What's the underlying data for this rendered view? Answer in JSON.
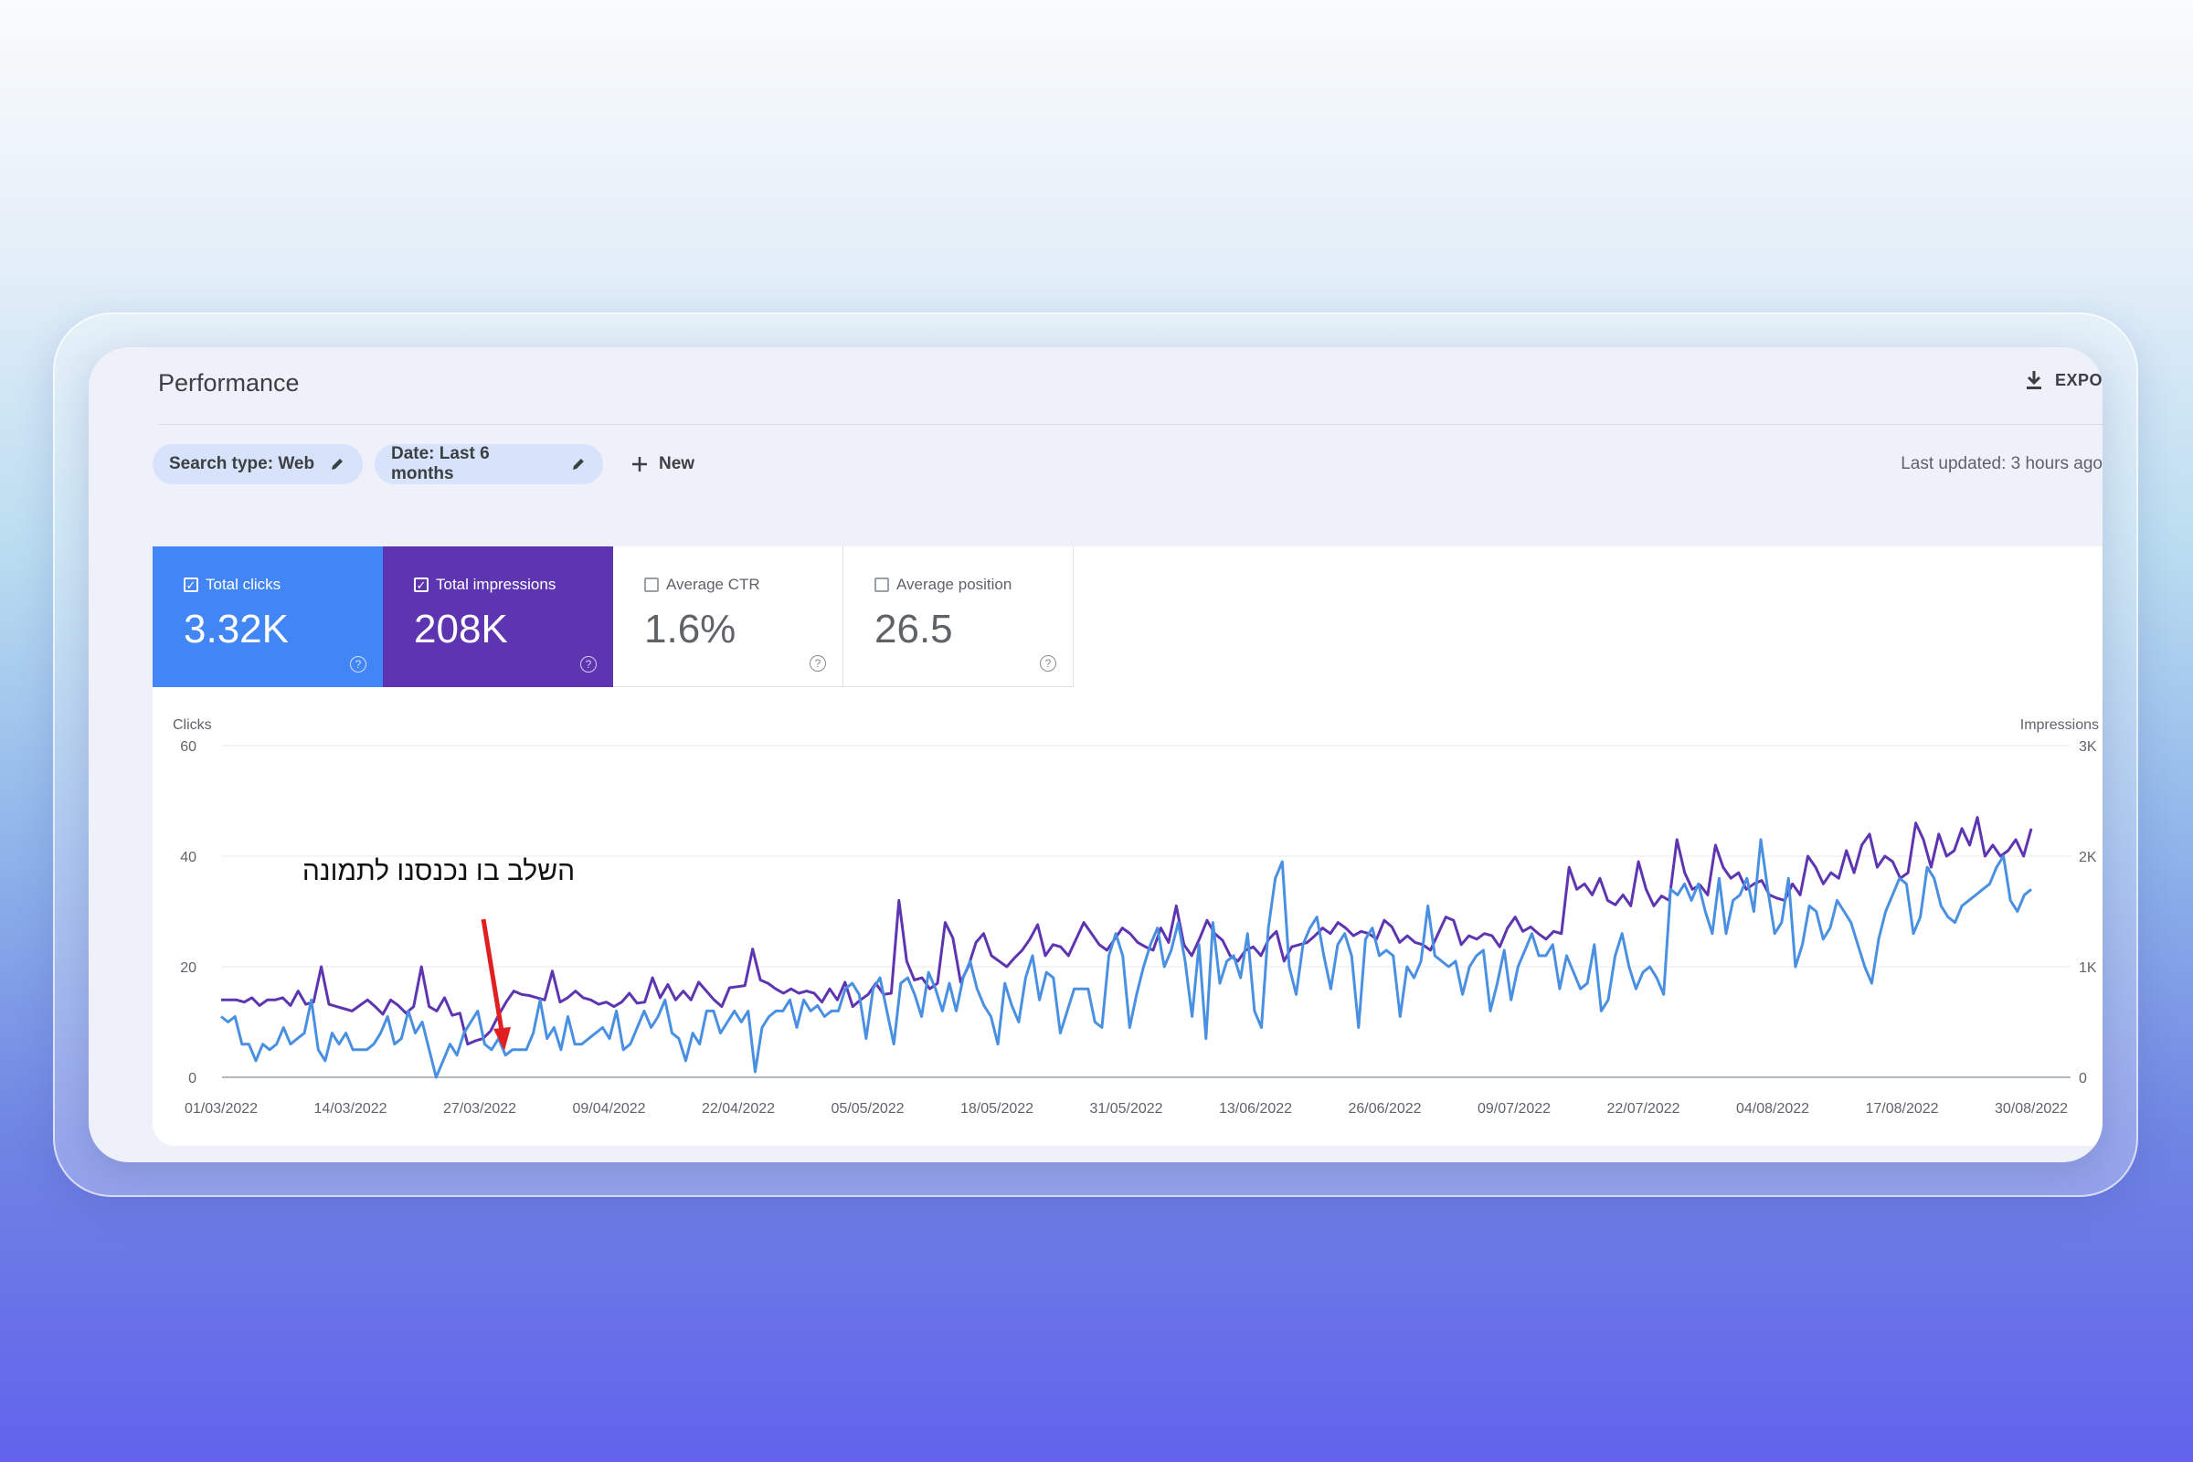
{
  "header": {
    "title": "Performance",
    "export_label": "EXPO",
    "last_updated": "Last updated: 3 hours ago"
  },
  "filters": {
    "search_type": "Search type: Web",
    "date": "Date: Last 6 months",
    "new_label": "New"
  },
  "metrics": {
    "clicks": {
      "label": "Total clicks",
      "value": "3.32K",
      "checked": true,
      "color": "#4285f4"
    },
    "impressions": {
      "label": "Total impressions",
      "value": "208K",
      "checked": true,
      "color": "#5e35b1"
    },
    "ctr": {
      "label": "Average CTR",
      "value": "1.6%",
      "checked": false
    },
    "position": {
      "label": "Average position",
      "value": "26.5",
      "checked": false
    }
  },
  "annotation": {
    "text": "השלב בו נכנסנו לתמונה",
    "arrow_color": "#e02020"
  },
  "chart_data": {
    "type": "line",
    "left_axis_label": "Clicks",
    "right_axis_label": "Impressions",
    "left_ticks": [
      "0",
      "20",
      "40",
      "60"
    ],
    "right_ticks": [
      "0",
      "1K",
      "2K",
      "3K"
    ],
    "left_ylim": [
      0,
      60
    ],
    "right_ylim": [
      0,
      3000
    ],
    "x_start": "01/03/2022",
    "x_end": "30/08/2022",
    "x_ticks": [
      "01/03/2022",
      "14/03/2022",
      "27/03/2022",
      "09/04/2022",
      "22/04/2022",
      "05/05/2022",
      "18/05/2022",
      "31/05/2022",
      "13/06/2022",
      "26/06/2022",
      "09/07/2022",
      "22/07/2022",
      "04/08/2022",
      "17/08/2022",
      "30/08/2022"
    ],
    "grid": true,
    "series": [
      {
        "name": "Impressions",
        "axis": "right",
        "color": "#5e35b1",
        "values": [
          700,
          700,
          700,
          680,
          720,
          650,
          700,
          700,
          720,
          650,
          780,
          660,
          680,
          1000,
          660,
          640,
          620,
          600,
          650,
          700,
          640,
          570,
          700,
          650,
          580,
          640,
          1000,
          640,
          600,
          720,
          560,
          580,
          300,
          330,
          350,
          420,
          560,
          680,
          780,
          750,
          740,
          720,
          700,
          960,
          680,
          720,
          780,
          720,
          700,
          660,
          680,
          640,
          680,
          760,
          670,
          680,
          900,
          720,
          840,
          700,
          780,
          700,
          860,
          780,
          700,
          640,
          810,
          820,
          830,
          1160,
          880,
          850,
          800,
          760,
          800,
          760,
          780,
          760,
          680,
          800,
          700,
          860,
          640,
          700,
          750,
          850,
          750,
          760,
          1600,
          1050,
          880,
          900,
          800,
          850,
          1400,
          1260,
          860,
          1000,
          1220,
          1300,
          1100,
          1050,
          1000,
          1080,
          1150,
          1250,
          1380,
          1100,
          1200,
          1180,
          1100,
          1250,
          1400,
          1300,
          1200,
          1150,
          1250,
          1350,
          1300,
          1220,
          1180,
          1150,
          1350,
          1220,
          1550,
          1200,
          1100,
          1250,
          1420,
          1300,
          1240,
          1100,
          1050,
          1150,
          1180,
          1100,
          1250,
          1320,
          1050,
          1180,
          1200,
          1220,
          1280,
          1350,
          1300,
          1400,
          1350,
          1280,
          1320,
          1300,
          1250,
          1420,
          1360,
          1220,
          1280,
          1220,
          1200,
          1150,
          1300,
          1450,
          1420,
          1200,
          1280,
          1250,
          1300,
          1280,
          1180,
          1350,
          1450,
          1320,
          1360,
          1300,
          1250,
          1320,
          1300,
          1900,
          1700,
          1750,
          1650,
          1800,
          1600,
          1560,
          1650,
          1550,
          1950,
          1700,
          1550,
          1640,
          1600,
          2150,
          1850,
          1700,
          1740,
          1650,
          2100,
          1900,
          1800,
          1850,
          1700,
          1750,
          1780,
          1650,
          1620,
          1600,
          1750,
          1650,
          2000,
          1900,
          1750,
          1850,
          1800,
          2050,
          1850,
          2100,
          2200,
          1900,
          2000,
          1950,
          1800,
          1850,
          2300,
          2150,
          1900,
          2200,
          2000,
          2050,
          2250,
          2100,
          2350,
          2000,
          2100,
          2000,
          2050,
          2150,
          2000,
          2250
        ]
      },
      {
        "name": "Clicks",
        "axis": "left",
        "color": "#4a90e2",
        "values": [
          11,
          10,
          11,
          6,
          6,
          3,
          6,
          5,
          6,
          9,
          6,
          7,
          8,
          14,
          5,
          3,
          8,
          6,
          8,
          5,
          5,
          5,
          6,
          8,
          11,
          6,
          7,
          12,
          8,
          10,
          5,
          0,
          3,
          6,
          4,
          8,
          10,
          12,
          6,
          5,
          7,
          4,
          5,
          5,
          5,
          8,
          14,
          7,
          9,
          5,
          11,
          6,
          6,
          7,
          8,
          9,
          7,
          12,
          5,
          6,
          9,
          12,
          9,
          11,
          14,
          8,
          7,
          3,
          8,
          6,
          12,
          12,
          8,
          10,
          12,
          10,
          12,
          1,
          9,
          11,
          12,
          12,
          14,
          9,
          14,
          12,
          13,
          11,
          12,
          12,
          16,
          17,
          15,
          7,
          16,
          18,
          12,
          6,
          17,
          18,
          15,
          11,
          19,
          16,
          12,
          17,
          12,
          18,
          21,
          16,
          13,
          11,
          6,
          17,
          13,
          10,
          18,
          22,
          14,
          19,
          18,
          8,
          12,
          16,
          16,
          16,
          10,
          9,
          22,
          26,
          22,
          9,
          15,
          20,
          24,
          27,
          20,
          23,
          28,
          21,
          11,
          24,
          7,
          28,
          17,
          21,
          22,
          18,
          26,
          12,
          9,
          27,
          36,
          39,
          20,
          15,
          24,
          27,
          29,
          22,
          16,
          24,
          26,
          22,
          9,
          25,
          27,
          22,
          23,
          22,
          11,
          20,
          18,
          21,
          31,
          22,
          21,
          20,
          21,
          15,
          20,
          22,
          23,
          12,
          17,
          23,
          14,
          20,
          23,
          26,
          22,
          22,
          24,
          16,
          22,
          19,
          16,
          17,
          24,
          12,
          14,
          22,
          26,
          20,
          16,
          19,
          20,
          18,
          15,
          34,
          33,
          35,
          32,
          35,
          30,
          26,
          36,
          26,
          32,
          33,
          36,
          30,
          43,
          34,
          26,
          28,
          36,
          20,
          24,
          31,
          30,
          25,
          27,
          32,
          30,
          28,
          24,
          20,
          17,
          25,
          30,
          33,
          36,
          35,
          26,
          29,
          38,
          36,
          31,
          29,
          28,
          31,
          32,
          33,
          34,
          35,
          38,
          40,
          32,
          30,
          33,
          34
        ]
      }
    ]
  }
}
